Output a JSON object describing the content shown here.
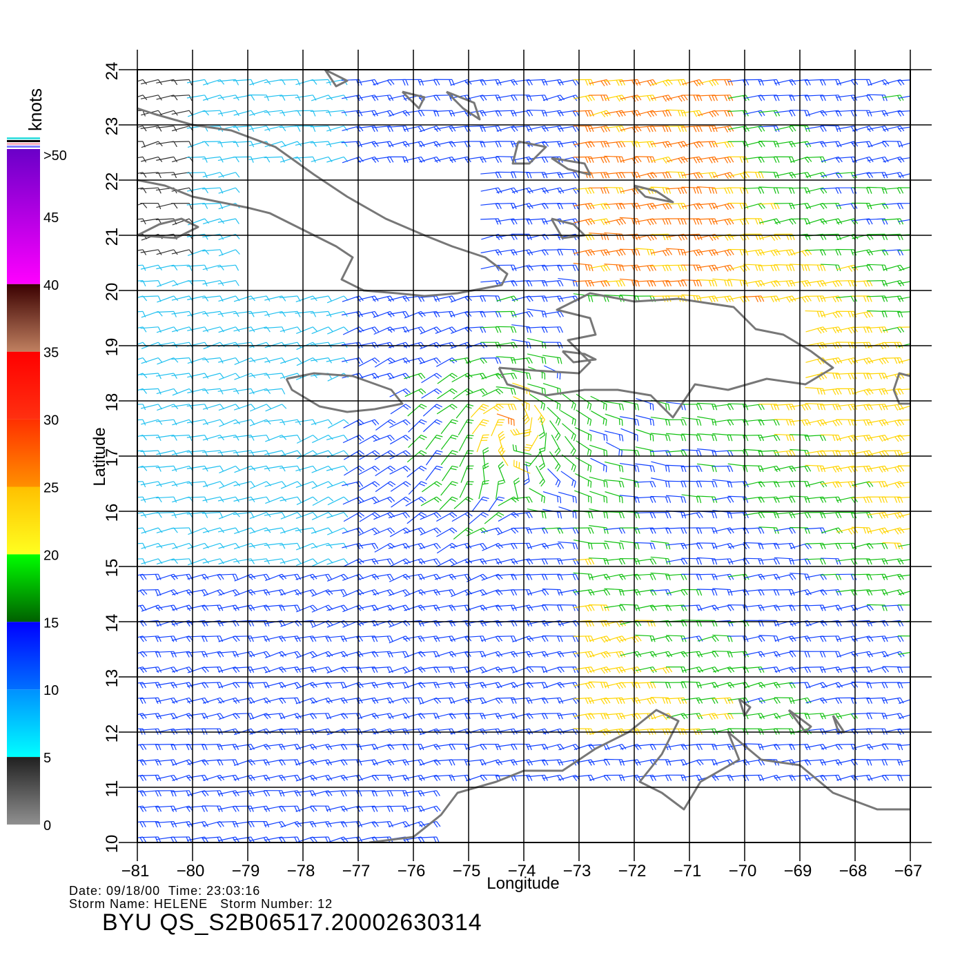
{
  "map": {
    "x_axis_label": "Longitude",
    "y_axis_label": "Latitude",
    "lon_range": [
      -81,
      -67
    ],
    "lat_range": [
      10,
      24
    ],
    "lon_ticks": [
      "-81",
      "-80",
      "-79",
      "-78",
      "-77",
      "-76",
      "-75",
      "-74",
      "-73",
      "-72",
      "-71",
      "-70",
      "-69",
      "-68",
      "-67"
    ],
    "lat_ticks": [
      "10",
      "11",
      "12",
      "13",
      "14",
      "15",
      "16",
      "17",
      "18",
      "19",
      "20",
      "21",
      "22",
      "23",
      "24"
    ],
    "grid": true,
    "land_color": "#ffffff",
    "coast_color": "#777777",
    "content": "QuikSCAT wind vectors (barbs) colored by speed"
  },
  "colorbar": {
    "unit_label": "knots",
    "labels": [
      ">50",
      "45",
      "40",
      "35",
      "30",
      "25",
      "20",
      "15",
      "10",
      "5",
      "0"
    ],
    "segments": [
      {
        "from": 50,
        "to": 40,
        "top": "#6a00c8",
        "bottom": "#ff00ff"
      },
      {
        "from": 40,
        "to": 35,
        "top": "#3a0000",
        "bottom": "#c08060"
      },
      {
        "from": 35,
        "to": 30,
        "top": "#ff0000",
        "bottom": "#ff3010"
      },
      {
        "from": 30,
        "to": 25,
        "top": "#ff3000",
        "bottom": "#ff9000"
      },
      {
        "from": 25,
        "to": 20,
        "top": "#ffc000",
        "bottom": "#ffff20"
      },
      {
        "from": 20,
        "to": 15,
        "top": "#00ff00",
        "bottom": "#006000"
      },
      {
        "from": 15,
        "to": 10,
        "top": "#0000ff",
        "bottom": "#0070ff"
      },
      {
        "from": 10,
        "to": 5,
        "top": "#0090ff",
        "bottom": "#00ffff"
      },
      {
        "from": 5,
        "to": 0,
        "top": "#202020",
        "bottom": "#909090"
      }
    ]
  },
  "info": {
    "date_label": "Date:",
    "date": "09/18/00",
    "time_label": "Time:",
    "time": "23:03:16",
    "storm_name_label": "Storm Name:",
    "storm_name": "HELENE",
    "storm_number_label": "Storm Number:",
    "storm_number": "12",
    "title": "BYU QS_S2B06517.20002630314"
  }
}
